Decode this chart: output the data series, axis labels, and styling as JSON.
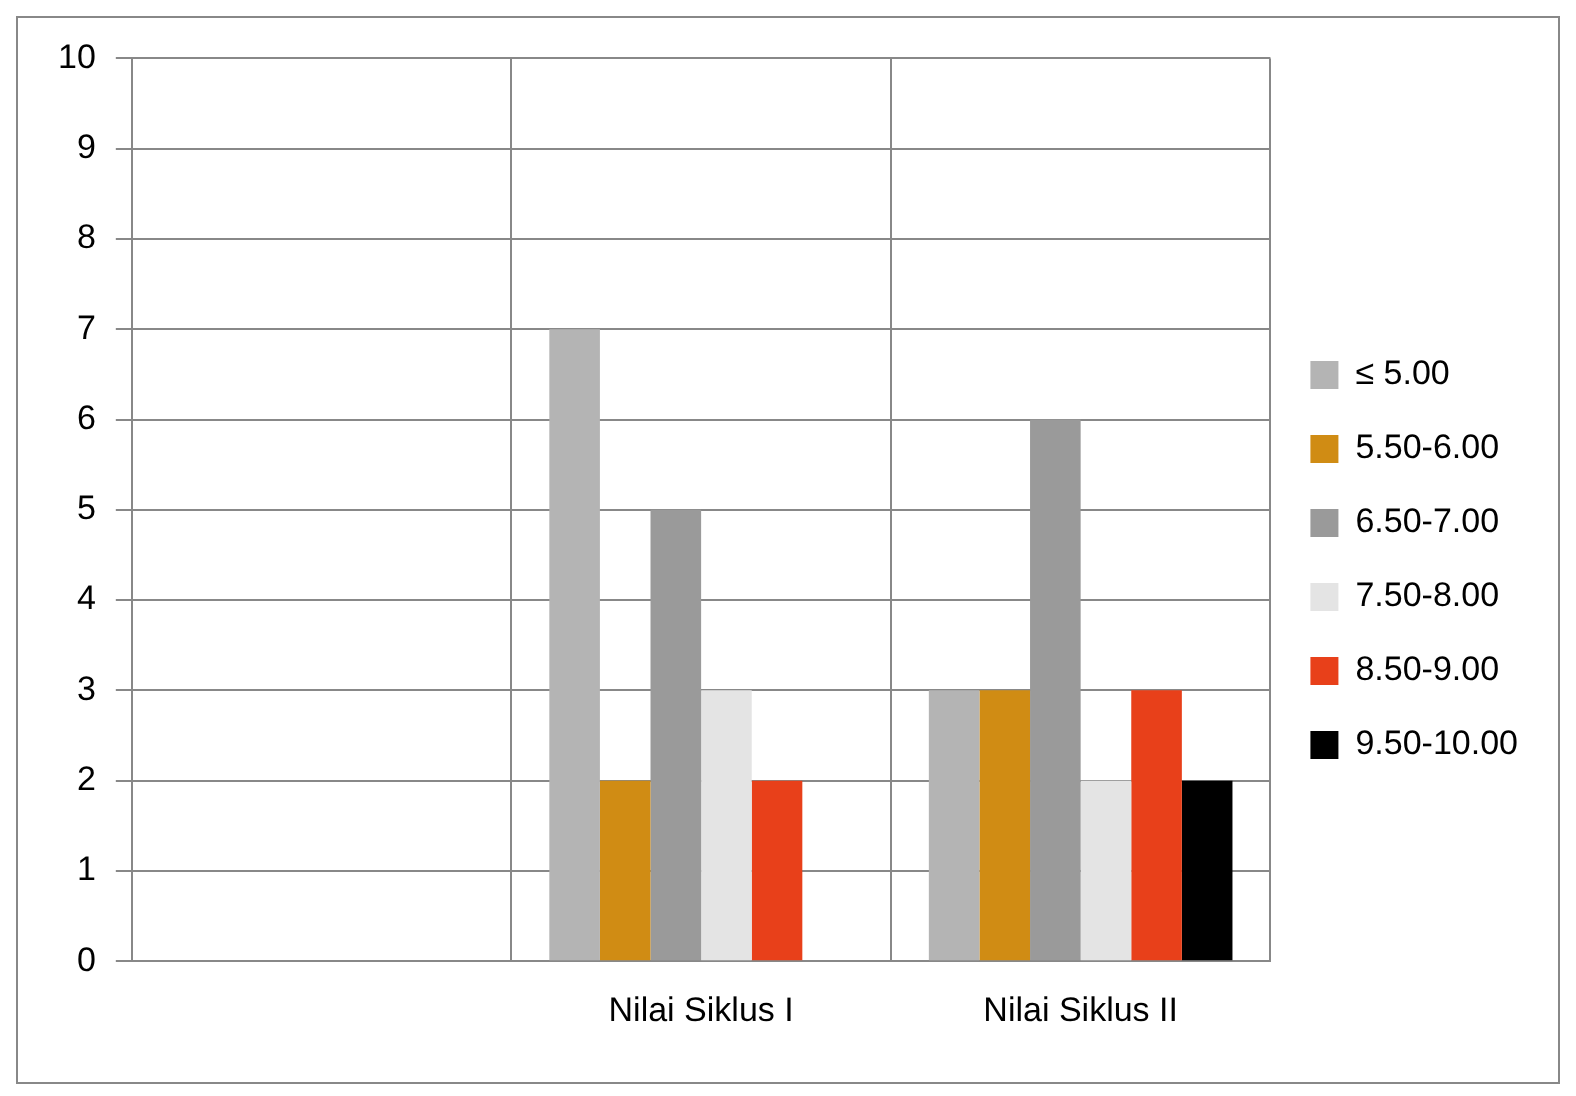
{
  "chart_data": {
    "type": "bar",
    "categories": [
      null,
      "Nilai Siklus I",
      "Nilai Siklus II"
    ],
    "series": [
      {
        "name": "≤ 5.00",
        "color": "#b4b4b4",
        "values": [
          null,
          7,
          3
        ]
      },
      {
        "name": "5.50-6.00",
        "color": "#d08c14",
        "values": [
          null,
          2,
          3
        ]
      },
      {
        "name": "6.50-7.00",
        "color": "#9a9a9a",
        "values": [
          null,
          5,
          6
        ]
      },
      {
        "name": "7.50-8.00",
        "color": "#e4e4e4",
        "values": [
          null,
          3,
          2
        ]
      },
      {
        "name": "8.50-9.00",
        "color": "#e8401a",
        "values": [
          null,
          2,
          3
        ]
      },
      {
        "name": "9.50-10.00",
        "color": "#000000",
        "values": [
          null,
          null,
          2
        ]
      }
    ],
    "ylim": [
      0,
      10
    ],
    "yticks": [
      0,
      1,
      2,
      3,
      4,
      5,
      6,
      7,
      8,
      9,
      10
    ],
    "grid": true,
    "legend": "right"
  }
}
